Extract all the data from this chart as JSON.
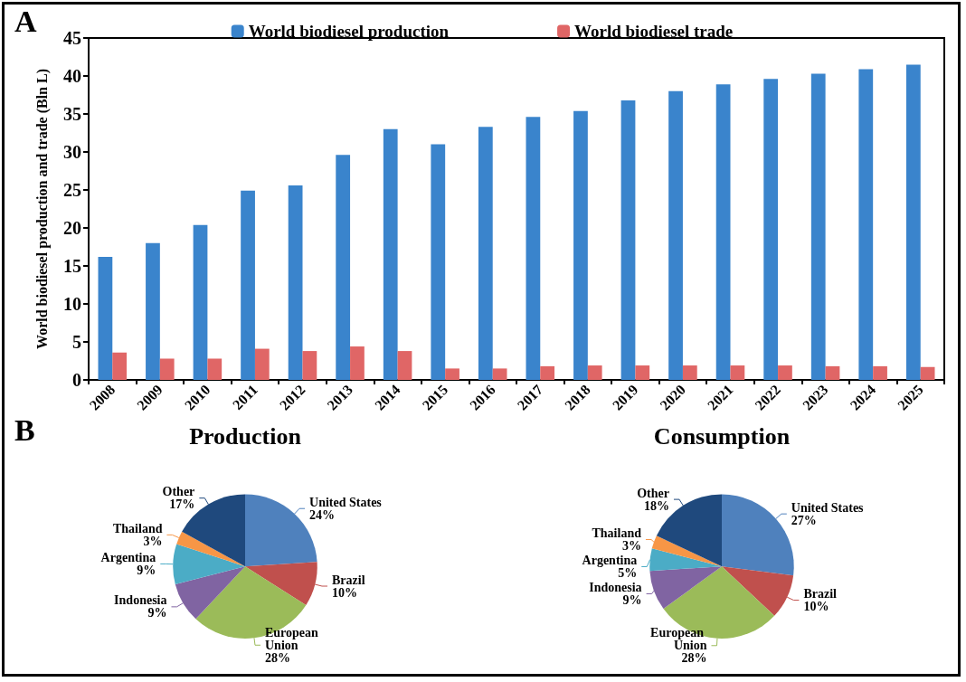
{
  "chart_data": [
    {
      "type": "bar",
      "annotations": [
        "A"
      ],
      "ylabel": "World biodiesel production and trade (Bln L)",
      "categories": [
        "2008",
        "2009",
        "2010",
        "2011",
        "2012",
        "2013",
        "2014",
        "2015",
        "2016",
        "2017",
        "2018",
        "2019",
        "2020",
        "2021",
        "2022",
        "2023",
        "2024",
        "2025"
      ],
      "series": [
        {
          "name": "World biodiesel production",
          "color": "#3a84cc",
          "values": [
            16.2,
            18.0,
            20.4,
            24.9,
            25.6,
            29.6,
            33.0,
            31.0,
            33.3,
            34.6,
            35.4,
            36.8,
            38.0,
            38.9,
            39.6,
            40.3,
            40.9,
            41.5
          ]
        },
        {
          "name": "World biodiesel trade",
          "color": "#e06666",
          "values": [
            3.6,
            2.8,
            2.8,
            4.1,
            3.8,
            4.4,
            3.8,
            1.5,
            1.5,
            1.8,
            1.9,
            1.9,
            1.9,
            1.9,
            1.9,
            1.8,
            1.8,
            1.7
          ]
        }
      ],
      "ylim": [
        0,
        45
      ],
      "yticks": [
        0,
        5,
        10,
        15,
        20,
        25,
        30,
        35,
        40,
        45
      ],
      "grid": false,
      "legend": "top"
    },
    {
      "type": "pie",
      "title": "Production",
      "annotations": [
        "B"
      ],
      "categories": [
        "United States",
        "Brazil",
        "European Union",
        "Indonesia",
        "Argentina",
        "Thailand",
        "Other"
      ],
      "values": [
        24,
        10,
        28,
        9,
        9,
        3,
        17
      ],
      "value_labels": [
        "24%",
        "10%",
        "28%",
        "9%",
        "9%",
        "3%",
        "17%"
      ],
      "colors": [
        "#4f81bd",
        "#c0504d",
        "#9bbb59",
        "#8064a2",
        "#4bacc6",
        "#f79646",
        "#1f497d"
      ]
    },
    {
      "type": "pie",
      "title": "Consumption",
      "categories": [
        "United States",
        "Brazil",
        "European Union",
        "Indonesia",
        "Argentina",
        "Thailand",
        "Other"
      ],
      "values": [
        27,
        10,
        28,
        9,
        5,
        3,
        18
      ],
      "value_labels": [
        "27%",
        "10%",
        "28%",
        "9%",
        "5%",
        "3%",
        "18%"
      ],
      "colors": [
        "#4f81bd",
        "#c0504d",
        "#9bbb59",
        "#8064a2",
        "#4bacc6",
        "#f79646",
        "#1f497d"
      ]
    }
  ]
}
